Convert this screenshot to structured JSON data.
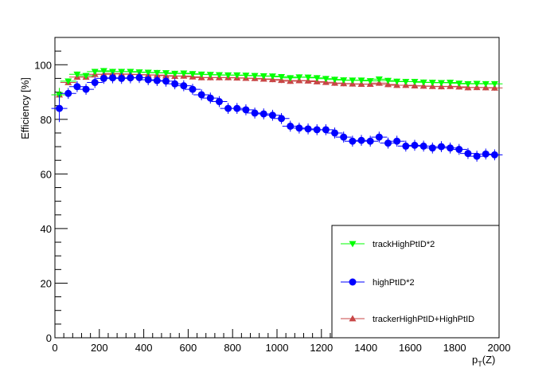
{
  "chart_data": {
    "type": "scatter",
    "xlabel": "p_T(Z)",
    "ylabel": "Efficiency [%]",
    "xlim": [
      0,
      2000
    ],
    "ylim": [
      0,
      110
    ],
    "xticks": [
      0,
      200,
      400,
      600,
      800,
      1000,
      1200,
      1400,
      1600,
      1800,
      2000
    ],
    "yticks": [
      0,
      20,
      40,
      60,
      80,
      100
    ],
    "grid": false,
    "legend_position": "bottom-right",
    "x": [
      20,
      60,
      100,
      140,
      180,
      220,
      260,
      300,
      340,
      380,
      420,
      460,
      500,
      540,
      580,
      620,
      660,
      700,
      740,
      780,
      820,
      860,
      900,
      940,
      980,
      1020,
      1060,
      1100,
      1140,
      1180,
      1220,
      1260,
      1300,
      1340,
      1380,
      1420,
      1460,
      1500,
      1540,
      1580,
      1620,
      1660,
      1700,
      1740,
      1780,
      1820,
      1860,
      1900,
      1940,
      1980
    ],
    "series": [
      {
        "name": "trackHighPtID*2",
        "color": "#00ff00",
        "marker": "triangle-down",
        "values": [
          89,
          94,
          96.5,
          96,
          97.5,
          97.8,
          97.5,
          97.5,
          97.5,
          97.3,
          97.2,
          97.1,
          97.0,
          96.8,
          96.9,
          96.7,
          96.5,
          96.4,
          96.3,
          96.2,
          96.2,
          96.1,
          96.0,
          95.9,
          95.8,
          95.6,
          95.2,
          95.5,
          95.4,
          95.2,
          94.9,
          94.6,
          94.4,
          94.3,
          94.3,
          94.1,
          94.7,
          94.2,
          93.9,
          93.8,
          93.8,
          93.6,
          93.5,
          93.4,
          93.5,
          93.2,
          93.0,
          93.1,
          93.0,
          93.0
        ]
      },
      {
        "name": "highPtID*2",
        "color": "#0000ff",
        "marker": "circle",
        "values": [
          84,
          89.5,
          92,
          91,
          93.5,
          95,
          95.2,
          95,
          95.2,
          95.3,
          94.5,
          94.2,
          94,
          93,
          92.3,
          91,
          89,
          87.8,
          86.5,
          84,
          84,
          83.5,
          82.3,
          82,
          81.5,
          80.3,
          77.5,
          76.8,
          76.5,
          76.2,
          76.2,
          75,
          73.5,
          72,
          72.3,
          72,
          73.5,
          71.3,
          72,
          70.2,
          70.5,
          70.2,
          69.5,
          70,
          69.5,
          69,
          67.5,
          66.5,
          67.3,
          67
        ]
      },
      {
        "name": "trackerHighPtID+HighPtID",
        "color": "#c84646",
        "marker": "triangle-up",
        "values": [
          89,
          93.5,
          95.5,
          95.5,
          96.5,
          96.5,
          96.8,
          96.6,
          96.5,
          96.4,
          96.3,
          96.2,
          96.0,
          95.8,
          95.9,
          95.6,
          95.3,
          95.3,
          95.3,
          95.3,
          95.2,
          95.1,
          95.0,
          94.8,
          94.6,
          94.3,
          94.0,
          94.2,
          94.1,
          93.8,
          93.6,
          93.3,
          93.1,
          93.0,
          92.9,
          92.9,
          93.3,
          92.8,
          92.5,
          92.5,
          92.3,
          92.2,
          92.1,
          92.0,
          92.1,
          91.9,
          91.6,
          91.7,
          91.6,
          91.5
        ]
      }
    ]
  }
}
